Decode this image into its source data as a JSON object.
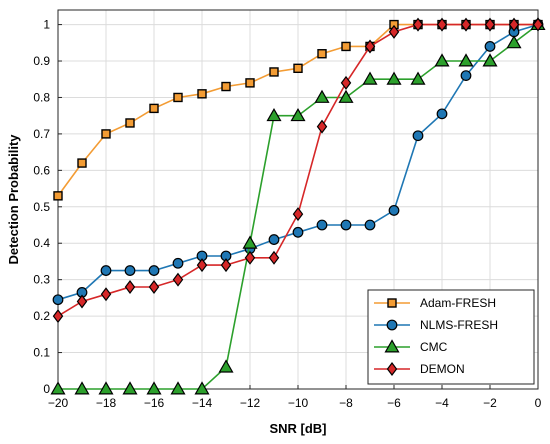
{
  "chart_data": {
    "type": "line",
    "xlabel": "SNR [dB]",
    "ylabel": "Detection Probability",
    "xlim": [
      -20,
      0
    ],
    "ylim": [
      0,
      1.04
    ],
    "xticks": [
      -20,
      -18,
      -16,
      -14,
      -12,
      -10,
      -8,
      -6,
      -4,
      -2,
      0
    ],
    "yticks": [
      0,
      0.1,
      0.2,
      0.3,
      0.4,
      0.5,
      0.6,
      0.7,
      0.8,
      0.9,
      1
    ],
    "xtick_labels": [
      "−20",
      "−18",
      "−16",
      "−14",
      "−12",
      "−10",
      "−8",
      "−6",
      "−4",
      "−2",
      "0"
    ],
    "ytick_labels": [
      "0",
      "0.1",
      "0.2",
      "0.3",
      "0.4",
      "0.5",
      "0.6",
      "0.7",
      "0.8",
      "0.9",
      "1"
    ],
    "grid": true,
    "legend_position": "bottom-right",
    "x": [
      -20,
      -19,
      -18,
      -17,
      -16,
      -15,
      -14,
      -13,
      -12,
      -11,
      -10,
      -9,
      -8,
      -7,
      -6,
      -5,
      -4,
      -3,
      -2,
      -1,
      0
    ],
    "series": [
      {
        "name": "Adam-FRESH",
        "color": "#F39C34",
        "marker": "square",
        "values": [
          0.53,
          0.62,
          0.7,
          0.73,
          0.77,
          0.8,
          0.81,
          0.83,
          0.84,
          0.87,
          0.88,
          0.92,
          0.94,
          0.94,
          1.0,
          1.0,
          1.0,
          1.0,
          1.0,
          1.0,
          1.0
        ]
      },
      {
        "name": "NLMS-FRESH",
        "color": "#1F77B4",
        "marker": "circle",
        "values": [
          0.245,
          0.265,
          0.325,
          0.325,
          0.325,
          0.345,
          0.365,
          0.365,
          0.385,
          0.41,
          0.43,
          0.45,
          0.45,
          0.45,
          0.49,
          0.695,
          0.755,
          0.86,
          0.94,
          0.98,
          1.0
        ]
      },
      {
        "name": "CMC",
        "color": "#2CA02C",
        "marker": "triangle",
        "values": [
          0.0,
          0.0,
          0.0,
          0.0,
          0.0,
          0.0,
          0.0,
          0.06,
          0.4,
          0.75,
          0.75,
          0.8,
          0.8,
          0.85,
          0.85,
          0.85,
          0.9,
          0.9,
          0.9,
          0.95,
          1.0
        ]
      },
      {
        "name": "DEMON",
        "color": "#D62728",
        "marker": "diamond",
        "values": [
          0.2,
          0.24,
          0.26,
          0.28,
          0.28,
          0.3,
          0.34,
          0.34,
          0.36,
          0.36,
          0.48,
          0.72,
          0.84,
          0.94,
          0.98,
          1.0,
          1.0,
          1.0,
          1.0,
          1.0,
          1.0
        ]
      }
    ]
  }
}
